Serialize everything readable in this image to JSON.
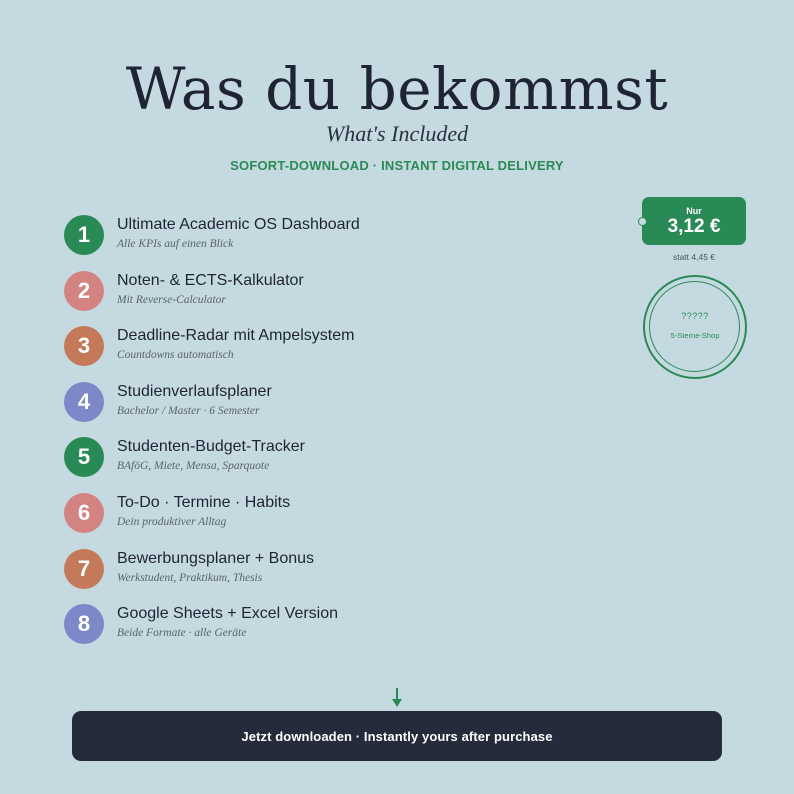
{
  "header": {
    "title": "Was du bekommst",
    "subtitle": "What's Included",
    "tagline": "SOFORT-DOWNLOAD · INSTANT DIGITAL DELIVERY"
  },
  "items": [
    {
      "number": "1",
      "title": "Ultimate Academic OS Dashboard",
      "subtitle": "Alle KPIs auf einen Blick",
      "color": "#2a8a55"
    },
    {
      "number": "2",
      "title": "Noten- & ECTS-Kalkulator",
      "subtitle": "Mit Reverse-Calculator",
      "color": "#d48383"
    },
    {
      "number": "3",
      "title": "Deadline-Radar mit Ampelsystem",
      "subtitle": "Countdowns automatisch",
      "color": "#c47a5a"
    },
    {
      "number": "4",
      "title": "Studienverlaufsplaner",
      "subtitle": "Bachelor / Master · 6 Semester",
      "color": "#7d88c8"
    },
    {
      "number": "5",
      "title": "Studenten-Budget-Tracker",
      "subtitle": "BAföG, Miete, Mensa, Sparquote",
      "color": "#2a8a55"
    },
    {
      "number": "6",
      "title": "To-Do · Termine · Habits",
      "subtitle": "Dein produktiver Alltag",
      "color": "#d48383"
    },
    {
      "number": "7",
      "title": "Bewerbungsplaner + Bonus",
      "subtitle": "Werkstudent, Praktikum, Thesis",
      "color": "#c47a5a"
    },
    {
      "number": "8",
      "title": "Google Sheets + Excel Version",
      "subtitle": "Beide Formate · alle Geräte",
      "color": "#7d88c8"
    }
  ],
  "price": {
    "label": "Nur",
    "value": "3,12 €",
    "old": "statt 4,45 €"
  },
  "badge": {
    "stars": "?????",
    "text": "5-Sterne-Shop"
  },
  "cta": {
    "label": "Jetzt downloaden · Instantly yours after purchase"
  },
  "colors": {
    "background": "#c5dae0",
    "accent": "#2a8a55",
    "dark": "#252b3a"
  }
}
